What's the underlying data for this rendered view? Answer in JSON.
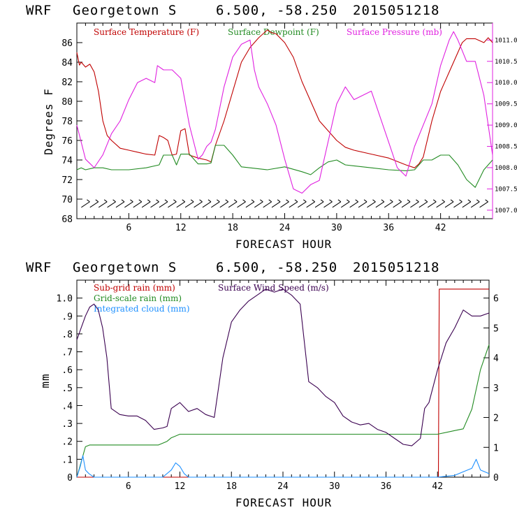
{
  "chart_data": [
    {
      "type": "line",
      "header": {
        "model": "WRF",
        "location": "Georgetown S",
        "coords": "6.500, -58.250",
        "init": "2015051218"
      },
      "xlabel": "FORECAST HOUR",
      "ylabel": "Degrees F",
      "xlim": [
        0,
        48
      ],
      "ylim": [
        68,
        88
      ],
      "xticks": [
        "6",
        "12",
        "18",
        "24",
        "30",
        "36",
        "42"
      ],
      "yticks": [
        "68",
        "70",
        "72",
        "74",
        "76",
        "78",
        "80",
        "82",
        "84",
        "86"
      ],
      "y2lim": [
        1006.8,
        1011.4
      ],
      "y2ticks": [
        "1007.0",
        "1007.5",
        "1008.0",
        "1008.5",
        "1009.0",
        "1009.5",
        "1010.0",
        "1010.5",
        "1011.0"
      ],
      "legend": [
        "Surface Temperature (F)",
        "Surface Dewpoint (F)",
        "Surface Pressure (mb)"
      ],
      "colors": {
        "temperature": "#c00000",
        "dewpoint": "#228b22",
        "pressure": "#e020e0",
        "wind_barbs": "#000000"
      },
      "series": [
        {
          "name": "Surface Temperature (F)",
          "axis": "left",
          "x": [
            0,
            0.3,
            0.5,
            1,
            1.5,
            2,
            2.5,
            3,
            3.5,
            4,
            5,
            6,
            7,
            8,
            9,
            9.5,
            10,
            10.5,
            11,
            11.5,
            12,
            12.5,
            13,
            14,
            15,
            15.5,
            16,
            17,
            18,
            19,
            20,
            21,
            22,
            22.5,
            23,
            24,
            25,
            26,
            27,
            28,
            29,
            30,
            31,
            32,
            34,
            36,
            38,
            39,
            39.5,
            40,
            41,
            42,
            43,
            44,
            44.5,
            45,
            46,
            47,
            47.5,
            48
          ],
          "y": [
            85,
            83.7,
            84,
            83.5,
            83.8,
            83,
            81,
            78,
            76.5,
            76,
            75.2,
            75,
            74.8,
            74.6,
            74.5,
            76.5,
            76.3,
            76,
            74.5,
            74.6,
            77,
            77.2,
            74.5,
            74.2,
            74,
            73.8,
            75.5,
            78,
            81,
            84,
            85.5,
            86.5,
            87.3,
            87,
            86.9,
            86,
            84.5,
            82,
            80,
            78,
            77,
            76,
            75.3,
            75,
            74.6,
            74.2,
            73.5,
            73.2,
            73.6,
            74.3,
            78,
            81,
            83,
            85,
            86,
            86.4,
            86.4,
            86,
            86.5,
            86
          ]
        },
        {
          "name": "Surface Dewpoint (F)",
          "axis": "left",
          "x": [
            0,
            0.5,
            1,
            2,
            3,
            4,
            6,
            8,
            9.5,
            10,
            11,
            11.5,
            12,
            13,
            14,
            15,
            15.5,
            16,
            17,
            18,
            19,
            20,
            22,
            24,
            26,
            27,
            28,
            29,
            30,
            31,
            32,
            34,
            36,
            38,
            39,
            40,
            41,
            42,
            43,
            44,
            45,
            46,
            47,
            48
          ],
          "y": [
            73,
            73.2,
            73,
            73.2,
            73.2,
            73,
            73,
            73.2,
            73.5,
            74.5,
            74.5,
            73.5,
            74.6,
            74.6,
            73.6,
            73.6,
            73.7,
            75.5,
            75.5,
            74.5,
            73.3,
            73.2,
            73,
            73.3,
            72.8,
            72.5,
            73.2,
            73.8,
            74,
            73.5,
            73.4,
            73.2,
            73,
            72.9,
            73,
            74,
            74,
            74.5,
            74.5,
            73.5,
            72,
            71.2,
            73,
            74
          ]
        },
        {
          "name": "Surface Pressure (mb)",
          "axis": "right",
          "x": [
            0,
            0.5,
            1,
            2,
            3,
            4,
            5,
            6,
            7,
            8,
            9,
            9.3,
            10,
            11,
            12,
            13,
            14,
            14.5,
            15,
            15.5,
            16,
            17,
            18,
            19,
            20,
            20.5,
            21,
            22,
            23,
            24,
            25,
            26,
            27,
            28,
            29,
            30,
            31,
            32,
            33,
            34,
            35,
            36,
            37,
            38,
            39,
            40,
            41,
            42,
            43,
            43.5,
            44,
            45,
            46,
            47,
            47.5,
            48
          ],
          "y": [
            1009.0,
            1008.6,
            1008.2,
            1008.0,
            1008.3,
            1008.8,
            1009.1,
            1009.6,
            1010.0,
            1010.1,
            1010.0,
            1010.4,
            1010.3,
            1010.3,
            1010.1,
            1009.0,
            1008.2,
            1008.3,
            1008.5,
            1008.6,
            1008.9,
            1009.9,
            1010.6,
            1010.9,
            1011.0,
            1010.3,
            1009.9,
            1009.5,
            1009.0,
            1008.2,
            1007.5,
            1007.4,
            1007.6,
            1007.7,
            1008.6,
            1009.5,
            1009.9,
            1009.6,
            1009.7,
            1009.8,
            1009.2,
            1008.6,
            1008.0,
            1007.8,
            1008.5,
            1009.0,
            1009.5,
            1010.4,
            1011.0,
            1011.2,
            1011.0,
            1010.5,
            1010.5,
            1009.7,
            1009.0,
            1008.3
          ]
        }
      ]
    },
    {
      "type": "line",
      "header": {
        "model": "WRF",
        "location": "Georgetown S",
        "coords": "6.500, -58.250",
        "init": "2015051218"
      },
      "xlabel": "FORECAST HOUR",
      "ylabel": "mm",
      "xlim": [
        0,
        48
      ],
      "ylim": [
        0,
        1.1
      ],
      "xticks": [
        "6",
        "12",
        "18",
        "24",
        "30",
        "36",
        "42"
      ],
      "yticks": [
        "0",
        ".1",
        ".2",
        ".3",
        ".4",
        ".5",
        ".6",
        ".7",
        ".8",
        ".9",
        "1.0"
      ],
      "y2lim": [
        0,
        6.6
      ],
      "y2ticks": [
        "0",
        "1",
        "2",
        "3",
        "4",
        "5",
        "6"
      ],
      "legend": [
        "Sub-grid rain (mm)",
        "Grid-scale rain (mm)",
        "Integrated cloud (mm)",
        "Surface Wind Speed (m/s)"
      ],
      "colors": {
        "subgrid": "#c00000",
        "gridscale": "#228b22",
        "cloud": "#1e90ff",
        "wind": "#3a0050"
      },
      "series": [
        {
          "name": "Sub-grid rain (mm)",
          "axis": "left",
          "x": [
            0,
            41.8,
            42.1,
            42.2,
            48
          ],
          "y": [
            0,
            0,
            0,
            1.05,
            1.05
          ]
        },
        {
          "name": "Grid-scale rain (mm)",
          "axis": "left",
          "x": [
            0,
            0.3,
            1,
            1.5,
            9.5,
            10.5,
            11,
            12,
            20,
            30,
            40,
            42,
            44,
            45,
            46,
            47,
            48
          ],
          "y": [
            0,
            0.05,
            0.17,
            0.18,
            0.18,
            0.2,
            0.22,
            0.24,
            0.24,
            0.24,
            0.24,
            0.24,
            0.26,
            0.27,
            0.38,
            0.6,
            0.74
          ]
        },
        {
          "name": "Integrated cloud (mm)",
          "axis": "left",
          "x": [
            0,
            0.4,
            0.7,
            1,
            1.4,
            2,
            5,
            8,
            10,
            11,
            11.5,
            12,
            12.5,
            13,
            20,
            30,
            40,
            42,
            44,
            45,
            46,
            46.5,
            47,
            48
          ],
          "y": [
            0,
            0.06,
            0.12,
            0.04,
            0.02,
            0,
            0,
            0,
            0,
            0.04,
            0.08,
            0.06,
            0.02,
            0,
            0,
            0,
            0,
            0,
            0.01,
            0.03,
            0.05,
            0.1,
            0.04,
            0.02
          ]
        },
        {
          "name": "Surface Wind Speed (m/s)",
          "axis": "right",
          "x": [
            0,
            0.5,
            1,
            1.5,
            2,
            2.5,
            3,
            3.5,
            4,
            5,
            6,
            7,
            8,
            9,
            10,
            10.5,
            11,
            12,
            13,
            14,
            15,
            16,
            17,
            18,
            19,
            20,
            21,
            22,
            23,
            24,
            25,
            26,
            27,
            28,
            29,
            30,
            31,
            32,
            33,
            34,
            35,
            36,
            37,
            38,
            39,
            40,
            40.5,
            41,
            42,
            43,
            44,
            45,
            46,
            47,
            48
          ],
          "y": [
            4.6,
            5.0,
            5.4,
            5.7,
            5.8,
            5.6,
            5.0,
            4.0,
            2.3,
            2.1,
            2.05,
            2.05,
            1.9,
            1.6,
            1.65,
            1.7,
            2.3,
            2.5,
            2.2,
            2.3,
            2.1,
            2.0,
            4.0,
            5.2,
            5.6,
            5.9,
            6.1,
            6.3,
            6.2,
            6.3,
            6.1,
            5.8,
            3.2,
            3.0,
            2.7,
            2.5,
            2.05,
            1.85,
            1.75,
            1.8,
            1.6,
            1.5,
            1.3,
            1.1,
            1.05,
            1.3,
            2.3,
            2.5,
            3.6,
            4.5,
            5.0,
            5.6,
            5.4,
            5.4,
            5.5
          ]
        }
      ]
    }
  ]
}
